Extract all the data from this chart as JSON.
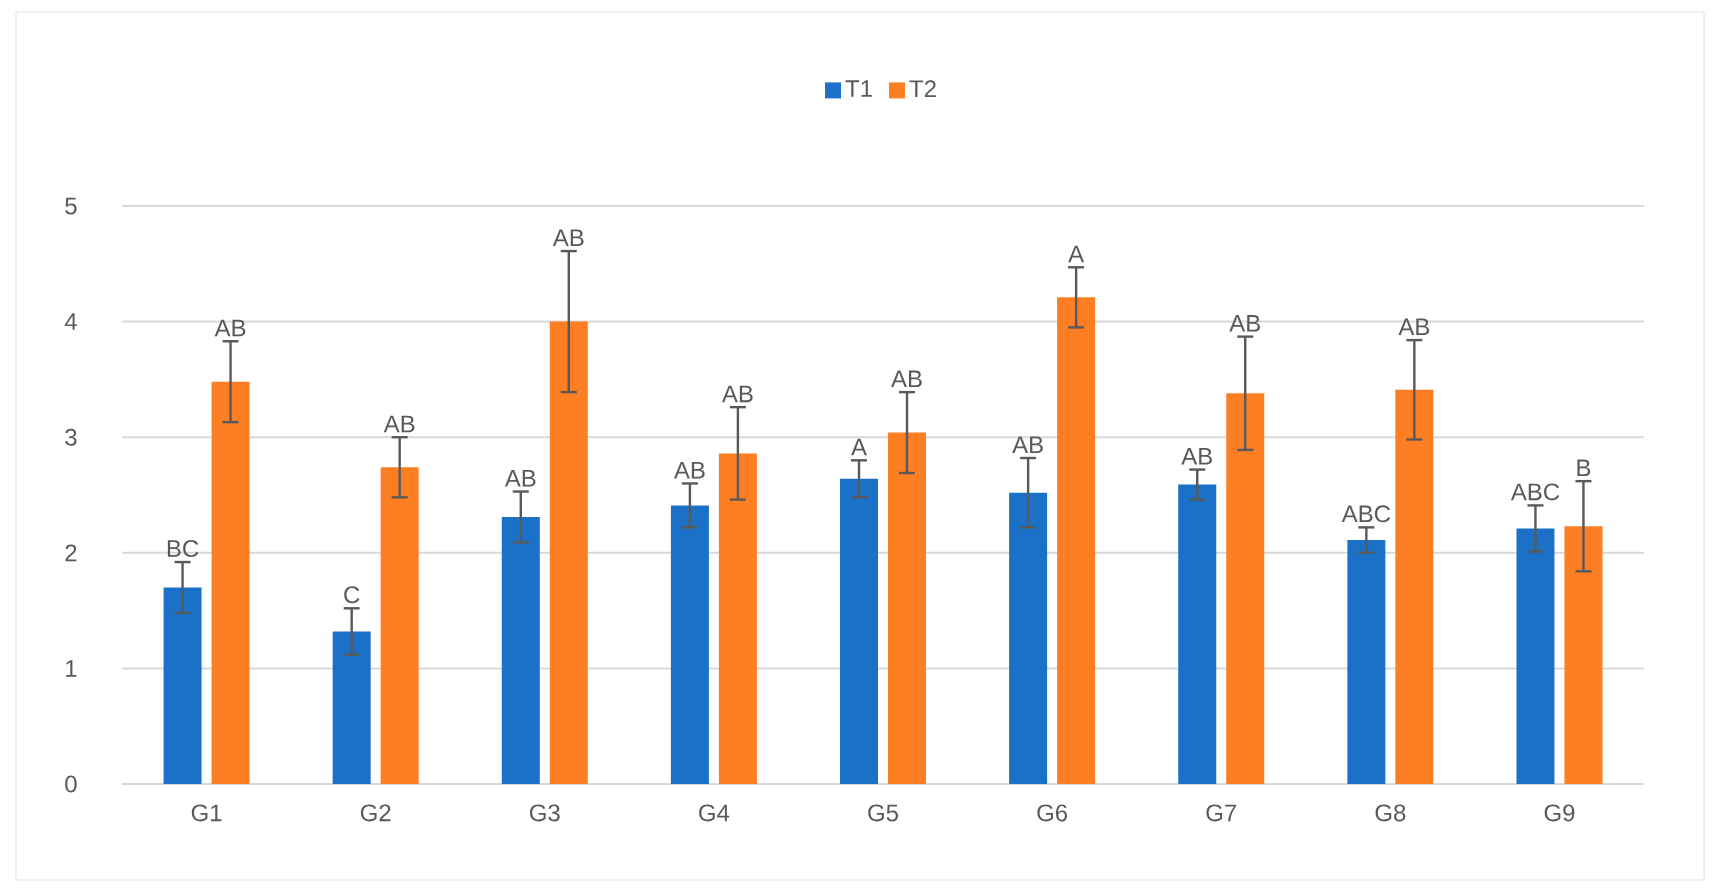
{
  "chart_data": {
    "type": "bar",
    "categories": [
      "G1",
      "G2",
      "G3",
      "G4",
      "G5",
      "G6",
      "G7",
      "G8",
      "G9"
    ],
    "series": [
      {
        "name": "T1",
        "color": "#1a71c7",
        "values": [
          1.7,
          1.32,
          2.31,
          2.41,
          2.64,
          2.52,
          2.59,
          2.11,
          2.21
        ],
        "errors": [
          0.22,
          0.2,
          0.22,
          0.19,
          0.16,
          0.3,
          0.13,
          0.11,
          0.2
        ],
        "value_labels": [
          "BC",
          "C",
          "AB",
          "AB",
          "A",
          "AB",
          "AB",
          "ABC",
          "ABC"
        ]
      },
      {
        "name": "T2",
        "color": "#fd7e23",
        "values": [
          3.48,
          2.74,
          4.0,
          2.86,
          3.04,
          4.21,
          3.38,
          3.41,
          2.23
        ],
        "errors": [
          0.35,
          0.26,
          0.61,
          0.4,
          0.35,
          0.26,
          0.49,
          0.43,
          0.39
        ],
        "value_labels": [
          "AB",
          "AB",
          "AB",
          "AB",
          "AB",
          "A",
          "AB",
          "AB",
          "B"
        ]
      }
    ],
    "ylim": [
      0,
      5
    ],
    "yticks": [
      0,
      1,
      2,
      3,
      4,
      5
    ],
    "grid": "y",
    "legend": "top"
  }
}
